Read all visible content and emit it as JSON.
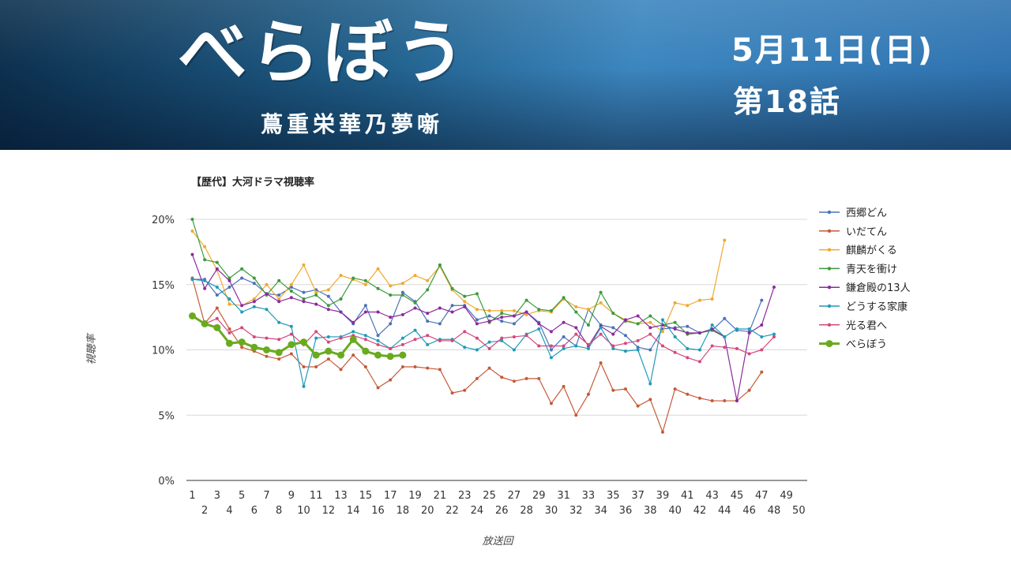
{
  "header": {
    "logo": "べらぼう",
    "subtitle": "蔦重栄華乃夢噺",
    "date": "5月11日(日)",
    "episode": "第18話"
  },
  "chart_data": {
    "type": "line",
    "title": "【歴代】大河ドラマ視聴率",
    "xlabel": "放送回",
    "ylabel": "視聴率",
    "ylim": [
      0,
      20
    ],
    "xlim": [
      1,
      50
    ],
    "yticks": [
      "0%",
      "5%",
      "10%",
      "15%",
      "20%"
    ],
    "xticks": [
      "1",
      "2",
      "3",
      "4",
      "5",
      "6",
      "7",
      "8",
      "9",
      "10",
      "11",
      "12",
      "13",
      "14",
      "15",
      "16",
      "17",
      "18",
      "19",
      "20",
      "21",
      "22",
      "23",
      "24",
      "25",
      "26",
      "27",
      "28",
      "29",
      "30",
      "31",
      "32",
      "33",
      "34",
      "35",
      "36",
      "37",
      "38",
      "39",
      "40",
      "41",
      "42",
      "43",
      "44",
      "45",
      "46",
      "47",
      "48",
      "49",
      "50"
    ],
    "grid": true,
    "legend_position": "right",
    "series": [
      {
        "name": "西郷どん",
        "color": "#4a72b8",
        "values": [
          15.4,
          15.4,
          14.2,
          14.8,
          15.5,
          15.1,
          14.3,
          14.2,
          14.8,
          14.4,
          14.6,
          14.1,
          12.9,
          12.0,
          13.4,
          11.1,
          12.0,
          14.4,
          13.7,
          12.2,
          12.0,
          13.4,
          13.4,
          12.3,
          12.6,
          12.2,
          12.0,
          12.9,
          12.1,
          10.0,
          11.0,
          10.3,
          13.1,
          11.9,
          11.7,
          11.1,
          10.2,
          10.0,
          11.6,
          11.7,
          11.8,
          11.3,
          11.5,
          12.4,
          11.5,
          11.4,
          13.8
        ]
      },
      {
        "name": "いだてん",
        "color": "#c55a3a",
        "values": [
          15.5,
          12.0,
          13.2,
          11.6,
          10.2,
          9.9,
          9.5,
          9.3,
          9.7,
          8.7,
          8.7,
          9.3,
          8.5,
          9.6,
          8.7,
          7.1,
          7.7,
          8.7,
          8.7,
          8.6,
          8.5,
          6.7,
          6.9,
          7.8,
          8.6,
          7.9,
          7.6,
          7.8,
          7.8,
          5.9,
          7.2,
          5.0,
          6.6,
          9.0,
          6.9,
          7.0,
          5.7,
          6.2,
          3.7,
          7.0,
          6.6,
          6.3,
          6.1,
          6.1,
          6.1,
          6.9,
          8.3
        ]
      },
      {
        "name": "麒麟がくる",
        "color": "#f0a830",
        "values": [
          19.1,
          17.9,
          16.1,
          13.5,
          13.4,
          13.9,
          15.0,
          13.9,
          15.0,
          16.5,
          14.4,
          14.6,
          15.7,
          15.4,
          15.0,
          16.2,
          14.9,
          15.1,
          15.7,
          15.3,
          16.4,
          14.6,
          13.7,
          13.1,
          13.0,
          13.0,
          13.0,
          12.7,
          13.0,
          12.9,
          13.9,
          13.3,
          13.1,
          13.6,
          12.8,
          12.3,
          12.0,
          12.1,
          11.4,
          13.6,
          13.4,
          13.8,
          13.9,
          18.4
        ]
      },
      {
        "name": "青天を衝け",
        "color": "#3c9a3c",
        "values": [
          20.0,
          16.9,
          16.7,
          15.5,
          16.2,
          15.5,
          14.2,
          15.3,
          14.5,
          13.9,
          14.2,
          13.4,
          13.9,
          15.5,
          15.3,
          14.7,
          14.2,
          14.2,
          13.6,
          14.6,
          16.5,
          14.7,
          14.1,
          14.3,
          12.1,
          12.8,
          12.6,
          13.8,
          13.1,
          13.0,
          14.0,
          12.9,
          11.9,
          14.4,
          12.8,
          12.2,
          12.0,
          12.6,
          11.9,
          12.1,
          11.2,
          11.3,
          11.5,
          11.0
        ]
      },
      {
        "name": "鎌倉殿の13人",
        "color": "#8b2a9e",
        "values": [
          17.3,
          14.7,
          16.2,
          15.3,
          13.4,
          13.7,
          14.3,
          13.7,
          14.0,
          13.7,
          13.5,
          13.1,
          12.9,
          12.1,
          12.9,
          12.9,
          12.5,
          12.7,
          13.2,
          12.8,
          13.2,
          12.9,
          13.3,
          12.0,
          12.2,
          12.5,
          12.6,
          12.9,
          12.0,
          11.4,
          12.1,
          11.7,
          10.3,
          11.8,
          11.2,
          12.3,
          12.6,
          11.7,
          11.9,
          11.6,
          11.3,
          11.3,
          11.6,
          11.0,
          6.1,
          11.3,
          11.9,
          14.8
        ]
      },
      {
        "name": "どうする家康",
        "color": "#1f9bb8",
        "values": [
          15.4,
          15.3,
          14.8,
          13.9,
          12.9,
          13.3,
          13.1,
          12.1,
          11.8,
          7.2,
          10.9,
          11.0,
          11.0,
          11.4,
          11.1,
          10.7,
          10.1,
          10.9,
          11.5,
          10.4,
          10.8,
          10.8,
          10.2,
          10.0,
          10.6,
          10.7,
          10.0,
          11.2,
          11.6,
          9.4,
          10.1,
          10.3,
          10.1,
          11.7,
          10.1,
          9.9,
          10.0,
          7.4,
          12.3,
          11.0,
          10.1,
          10.0,
          11.9,
          11.0,
          11.6,
          11.6,
          11.0,
          11.2
        ]
      },
      {
        "name": "光る君へ",
        "color": "#d4477f",
        "values": [
          12.7,
          12.0,
          12.4,
          11.3,
          11.7,
          11.0,
          10.9,
          10.8,
          11.2,
          10.4,
          11.4,
          10.6,
          10.9,
          11.1,
          10.8,
          10.4,
          10.1,
          10.4,
          10.8,
          11.1,
          10.7,
          10.7,
          11.4,
          10.9,
          10.1,
          10.9,
          11.0,
          11.1,
          10.3,
          10.3,
          10.3,
          11.2,
          10.4,
          11.2,
          10.3,
          10.5,
          10.7,
          11.2,
          10.3,
          9.8,
          9.4,
          9.1,
          10.3,
          10.2,
          10.1,
          9.7,
          10.0,
          11.0
        ]
      },
      {
        "name": "べらぼう",
        "color": "#6aaa1e",
        "values": [
          12.6,
          12.0,
          11.7,
          10.5,
          10.6,
          10.2,
          10.0,
          9.8,
          10.4,
          10.6,
          9.6,
          9.9,
          9.6,
          10.8,
          9.9,
          9.6,
          9.5,
          9.6
        ]
      }
    ]
  }
}
